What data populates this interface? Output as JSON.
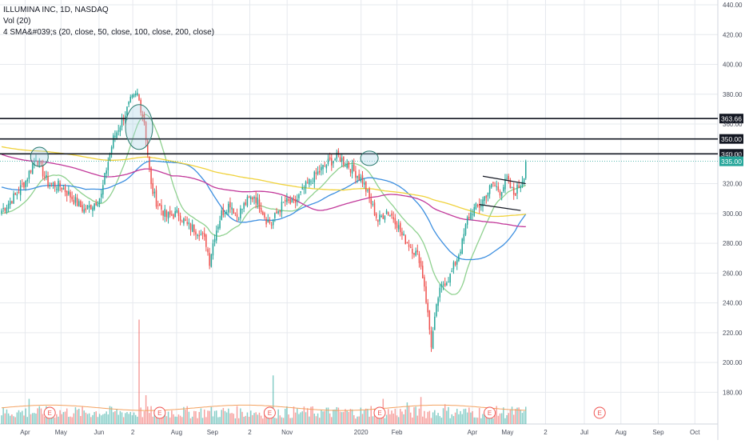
{
  "header": {
    "symbol_line": "ILLUMINA INC, 1D, NASDAQ",
    "volume_line": "Vol (20)",
    "sma_line": "4 SMA&#039;s (20, close, 50, close, 100, close, 200, close)"
  },
  "colors": {
    "up": "#26a69a",
    "down": "#ef5350",
    "sma20": "#8fd18f",
    "sma50": "#3d8fe0",
    "sma100": "#c2399a",
    "sma200": "#f0d23c",
    "grid": "#e6e9ee",
    "price_badge": "#26a69a",
    "level_badge": "#131722"
  },
  "chart_data": {
    "type": "candlestick",
    "title": "ILLUMINA INC, 1D, NASDAQ",
    "ylim": [
      170,
      440
    ],
    "y_ticks": [
      "440.00",
      "420.00",
      "400.00",
      "380.00",
      "360.00",
      "340.00",
      "320.00",
      "300.00",
      "280.00",
      "260.00",
      "240.00",
      "220.00",
      "200.00",
      "180.00"
    ],
    "x_ticks": [
      {
        "label": "Apr",
        "pos": 0.035
      },
      {
        "label": "May",
        "pos": 0.085
      },
      {
        "label": "Jun",
        "pos": 0.138
      },
      {
        "label": "2",
        "pos": 0.185
      },
      {
        "label": "Aug",
        "pos": 0.246
      },
      {
        "label": "Sep",
        "pos": 0.296
      },
      {
        "label": "2",
        "pos": 0.348
      },
      {
        "label": "Nov",
        "pos": 0.4
      },
      {
        "label": "2020",
        "pos": 0.503
      },
      {
        "label": "Feb",
        "pos": 0.553
      },
      {
        "label": "Apr",
        "pos": 0.658
      },
      {
        "label": "May",
        "pos": 0.707
      },
      {
        "label": "2",
        "pos": 0.76
      },
      {
        "label": "Jul",
        "pos": 0.814
      },
      {
        "label": "Aug",
        "pos": 0.865
      },
      {
        "label": "Sep",
        "pos": 0.917
      },
      {
        "label": "Oct",
        "pos": 0.968
      }
    ],
    "anchors": [
      [
        0,
        302
      ],
      [
        8,
        312
      ],
      [
        14,
        322
      ],
      [
        20,
        338
      ],
      [
        23,
        330
      ],
      [
        27,
        320
      ],
      [
        35,
        318
      ],
      [
        43,
        308
      ],
      [
        48,
        302
      ],
      [
        53,
        306
      ],
      [
        58,
        312
      ],
      [
        61,
        330
      ],
      [
        65,
        350
      ],
      [
        70,
        362
      ],
      [
        75,
        375
      ],
      [
        79,
        380
      ],
      [
        83,
        362
      ],
      [
        87,
        318
      ],
      [
        90,
        308
      ],
      [
        96,
        298
      ],
      [
        103,
        300
      ],
      [
        108,
        292
      ],
      [
        115,
        288
      ],
      [
        119,
        280
      ],
      [
        121,
        268
      ],
      [
        124,
        286
      ],
      [
        128,
        300
      ],
      [
        133,
        307
      ],
      [
        137,
        298
      ],
      [
        142,
        307
      ],
      [
        147,
        312
      ],
      [
        151,
        304
      ],
      [
        154,
        296
      ],
      [
        157,
        293
      ],
      [
        161,
        302
      ],
      [
        165,
        308
      ],
      [
        170,
        306
      ],
      [
        177,
        318
      ],
      [
        183,
        326
      ],
      [
        190,
        334
      ],
      [
        196,
        338
      ],
      [
        202,
        332
      ],
      [
        207,
        326
      ],
      [
        210,
        322
      ],
      [
        214,
        310
      ],
      [
        219,
        295
      ],
      [
        224,
        302
      ],
      [
        229,
        296
      ],
      [
        233,
        285
      ],
      [
        238,
        278
      ],
      [
        243,
        270
      ],
      [
        246,
        252
      ],
      [
        248,
        232
      ],
      [
        250,
        212
      ],
      [
        252,
        228
      ],
      [
        254,
        244
      ],
      [
        257,
        253
      ],
      [
        261,
        258
      ],
      [
        265,
        270
      ],
      [
        268,
        280
      ],
      [
        271,
        296
      ],
      [
        274,
        302
      ],
      [
        278,
        305
      ],
      [
        282,
        313
      ],
      [
        286,
        320
      ],
      [
        290,
        315
      ],
      [
        294,
        322
      ],
      [
        298,
        313
      ],
      [
        302,
        320
      ],
      [
        305,
        330
      ]
    ],
    "volume_scale": [
      0,
      60
    ],
    "volume_avg": 9,
    "volume_spikes": [
      {
        "bar": 16,
        "value": 14
      },
      {
        "bar": 80,
        "value": 58
      },
      {
        "bar": 80,
        "value": 58
      },
      {
        "bar": 84,
        "value": 16
      },
      {
        "bar": 158,
        "value": 27
      },
      {
        "bar": 193,
        "value": 8
      },
      {
        "bar": 215,
        "value": 10
      },
      {
        "bar": 222,
        "value": 14
      },
      {
        "bar": 236,
        "value": 12
      },
      {
        "bar": 244,
        "value": 15
      },
      {
        "bar": 258,
        "value": 11
      }
    ],
    "horizontal_levels": [
      {
        "value": 363.66,
        "label": "363.66"
      },
      {
        "value": 350.0,
        "label": "350.00"
      },
      {
        "value": 340.0,
        "label": "340.00"
      }
    ],
    "last_price": {
      "value": 335.0,
      "label": "335.00"
    },
    "channel": [
      {
        "x0": 280,
        "y0": 325,
        "x1": 305,
        "y1": 320
      },
      {
        "x0": 278,
        "y0": 306,
        "x1": 302,
        "y1": 302
      }
    ],
    "earnings_markers": [
      "E",
      "E",
      "E",
      "E",
      "E",
      "E"
    ],
    "earnings_bars": [
      28,
      92,
      156,
      220,
      284,
      348
    ],
    "series": [
      {
        "name": "SMA 20",
        "period": 20
      },
      {
        "name": "SMA 50",
        "period": 50
      },
      {
        "name": "SMA 100",
        "period": 100
      },
      {
        "name": "SMA 200",
        "period": 200
      }
    ]
  }
}
